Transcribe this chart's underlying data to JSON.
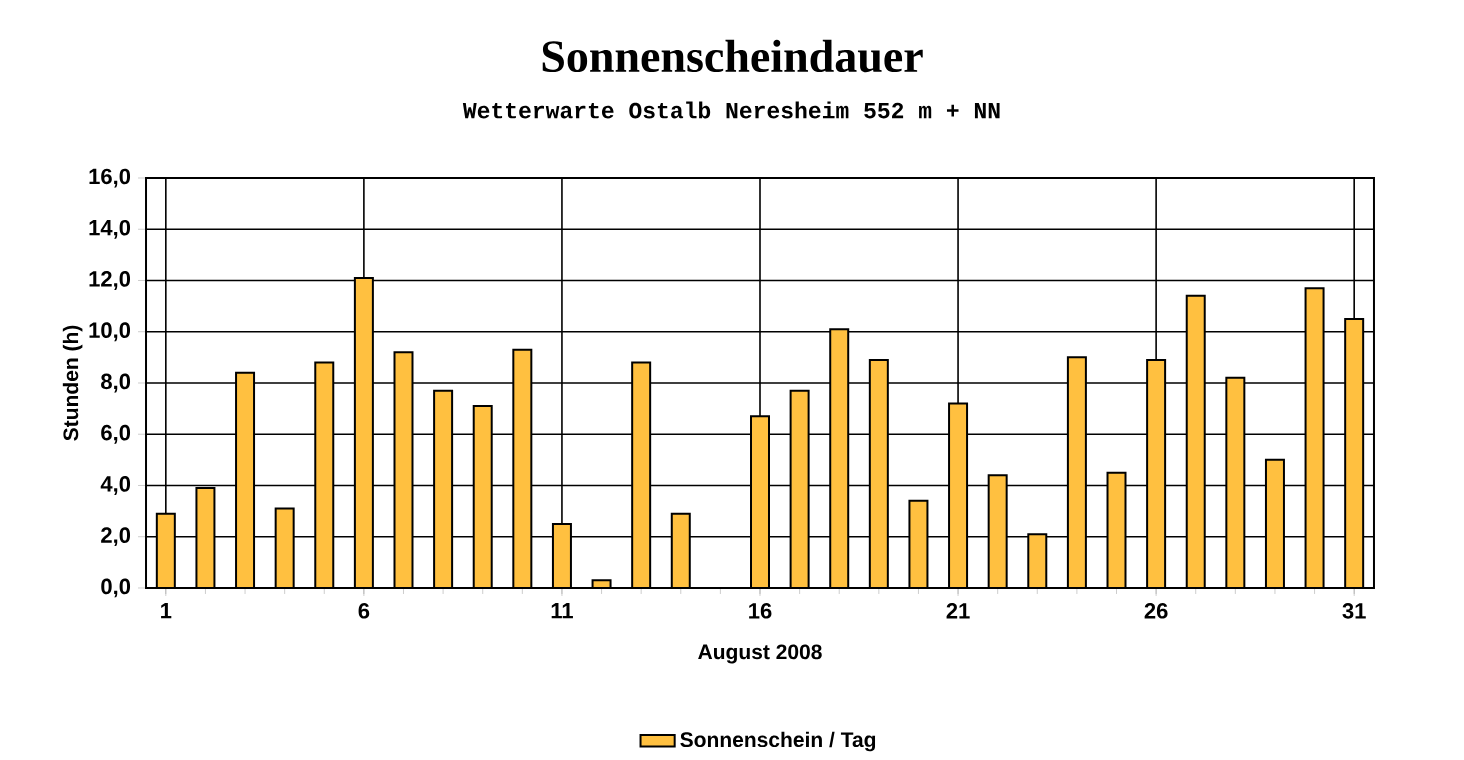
{
  "chart_data": {
    "type": "bar",
    "title": "Sonnenscheindauer",
    "subtitle": "Wetterwarte Ostalb Neresheim 552 m + NN",
    "xlabel": "August 2008",
    "ylabel": "Stunden  (h)",
    "x": [
      1,
      2,
      3,
      4,
      5,
      6,
      7,
      8,
      9,
      10,
      11,
      12,
      13,
      14,
      15,
      16,
      17,
      18,
      19,
      20,
      21,
      22,
      23,
      24,
      25,
      26,
      27,
      28,
      29,
      30,
      31
    ],
    "series": [
      {
        "name": "Sonnenschein / Tag",
        "color": "#ffc040",
        "values": [
          2.9,
          3.9,
          8.4,
          3.1,
          8.8,
          12.1,
          9.2,
          7.7,
          7.1,
          9.3,
          2.5,
          0.3,
          8.8,
          2.9,
          0,
          6.7,
          7.7,
          10.1,
          8.9,
          3.4,
          7.2,
          4.4,
          2.1,
          9.0,
          4.5,
          8.9,
          11.4,
          8.2,
          5.0,
          11.7,
          10.5
        ]
      }
    ],
    "xlim": [
      0.5,
      31.5
    ],
    "xticks": [
      1,
      6,
      11,
      16,
      21,
      26,
      31
    ],
    "ylim": [
      0,
      16
    ],
    "yticks": [
      {
        "value": 0,
        "label": "0,0"
      },
      {
        "value": 2,
        "label": "2,0"
      },
      {
        "value": 4,
        "label": "4,0"
      },
      {
        "value": 6,
        "label": "6,0"
      },
      {
        "value": 8,
        "label": "8,0"
      },
      {
        "value": 10,
        "label": "10,0"
      },
      {
        "value": 12,
        "label": "12,0"
      },
      {
        "value": 14,
        "label": "14,0"
      },
      {
        "value": 16,
        "label": "16,0"
      }
    ],
    "grid": true,
    "legend": "bottom"
  }
}
